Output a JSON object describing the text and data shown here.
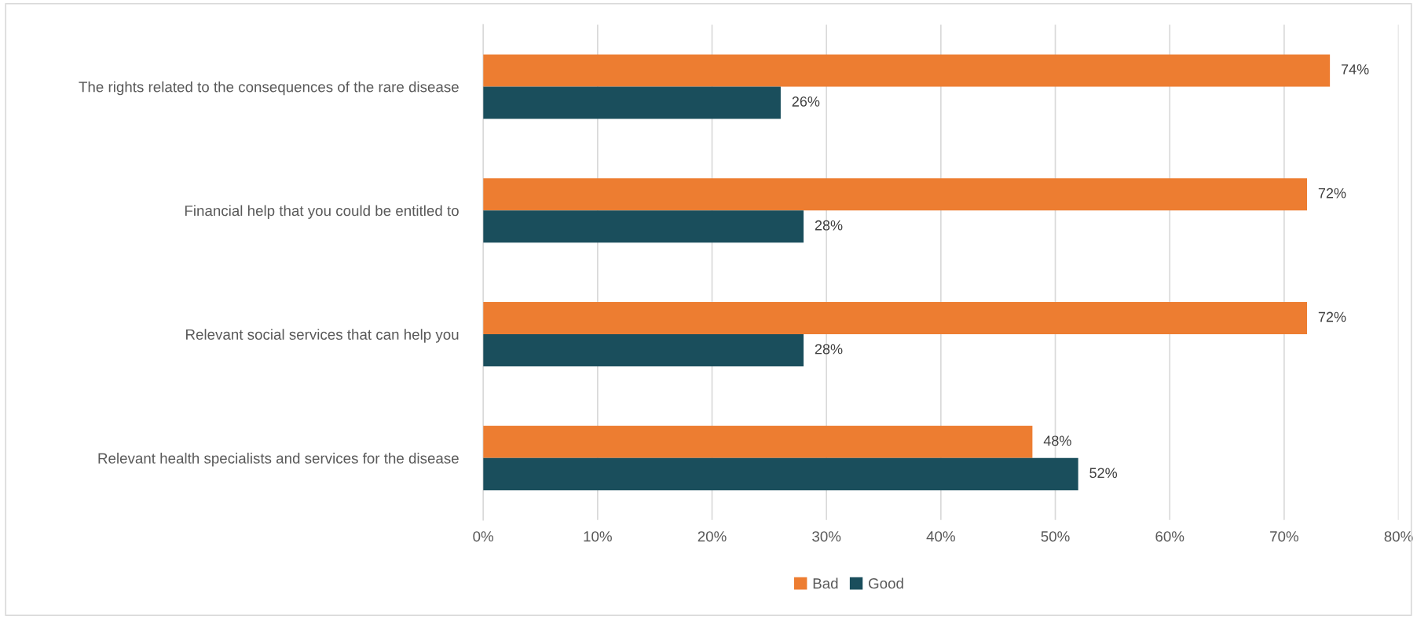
{
  "chart_data": {
    "type": "bar",
    "orientation": "horizontal",
    "categories": [
      "The rights related to the consequences of the rare disease",
      "Financial help that you could be entitled to",
      "Relevant social services that can help you",
      "Relevant health specialists and services for the disease"
    ],
    "series": [
      {
        "name": "Bad",
        "color": "#ed7d31",
        "values": [
          74,
          72,
          72,
          48
        ],
        "value_labels": [
          "74%",
          "72%",
          "72%",
          "48%"
        ]
      },
      {
        "name": "Good",
        "color": "#1a4e5c",
        "values": [
          26,
          28,
          28,
          52
        ],
        "value_labels": [
          "26%",
          "28%",
          "28%",
          "52%"
        ]
      }
    ],
    "xlim": [
      0,
      80
    ],
    "xticks": [
      {
        "value": 0,
        "label": "0%"
      },
      {
        "value": 10,
        "label": "10%"
      },
      {
        "value": 20,
        "label": "20%"
      },
      {
        "value": 30,
        "label": "30%"
      },
      {
        "value": 40,
        "label": "40%"
      },
      {
        "value": 50,
        "label": "50%"
      },
      {
        "value": 60,
        "label": "60%"
      },
      {
        "value": 70,
        "label": "70%"
      },
      {
        "value": 80,
        "label": "80%"
      }
    ],
    "grid": "x",
    "legend": "bottom"
  }
}
